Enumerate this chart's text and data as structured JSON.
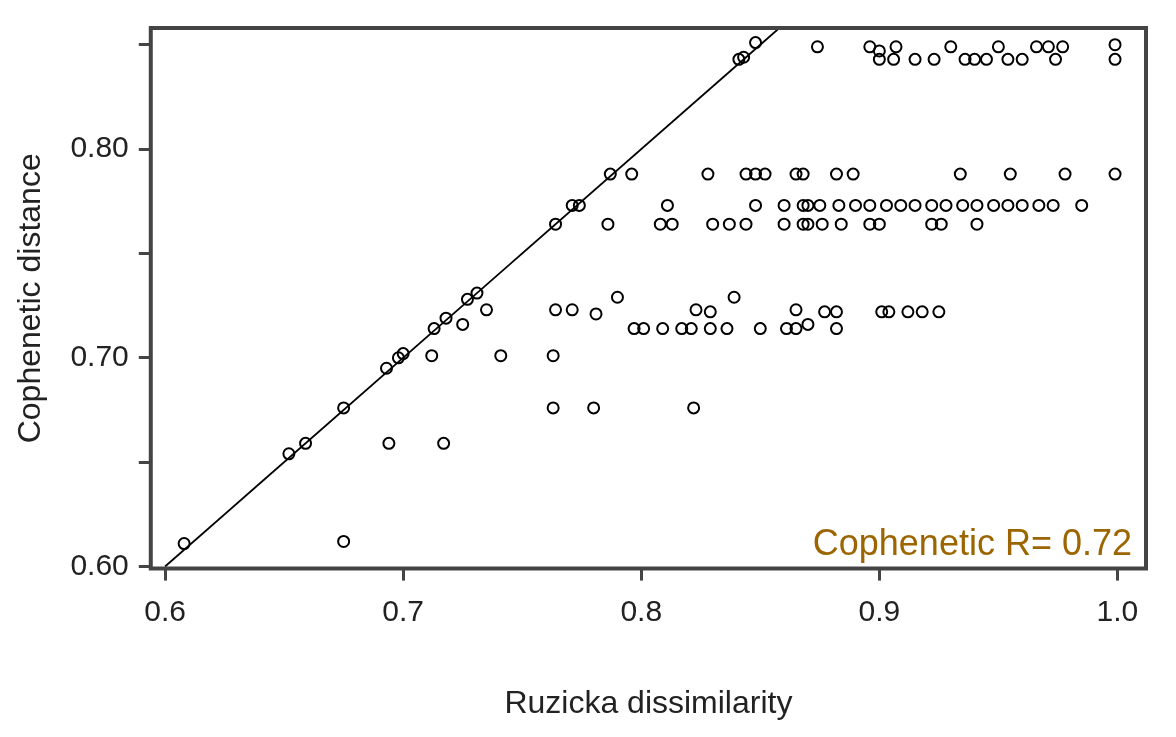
{
  "chart_data": {
    "type": "scatter",
    "xlabel": "Ruzicka dissimilarity",
    "ylabel": "Cophenetic distance",
    "annotations": [
      "Cophenetic R= 0.72"
    ],
    "xlim": [
      0.594,
      1.012
    ],
    "ylim": [
      0.599,
      0.858
    ],
    "xticks": [
      0.6,
      0.7,
      0.8,
      0.9,
      {
        "value": 1,
        "label": "1.0"
      }
    ],
    "yticks": [
      {
        "value": 0.6,
        "label": "0.60"
      },
      {
        "value": 0.65,
        "label": null
      },
      {
        "value": 0.7,
        "label": "0.70"
      },
      {
        "value": 0.75,
        "label": null
      },
      {
        "value": 0.8,
        "label": "0.80"
      },
      {
        "value": 0.85,
        "label": null
      }
    ],
    "series": [
      {
        "color": "#000000",
        "marker": "circle",
        "x": [
          0.608,
          0.652,
          0.659,
          0.675,
          0.693,
          0.698,
          0.7,
          0.713,
          0.718,
          0.725,
          0.727,
          0.731,
          0.694,
          0.717,
          0.675,
          0.712,
          0.735,
          0.764,
          0.771,
          0.781,
          0.79,
          0.801,
          0.797,
          0.809,
          0.817,
          0.821,
          0.823,
          0.829,
          0.829,
          0.836,
          0.839,
          0.85,
          0.861,
          0.865,
          0.865,
          0.741,
          0.763,
          0.763,
          0.78,
          0.822,
          0.87,
          0.877,
          0.882,
          0.882,
          0.901,
          0.904,
          0.912,
          0.918,
          0.925,
          0.848,
          0.843,
          0.841,
          0.787,
          0.796,
          0.828,
          0.844,
          0.848,
          0.852,
          0.865,
          0.868,
          0.882,
          0.889,
          0.934,
          0.955,
          0.978,
          0.999,
          0.774,
          0.771,
          0.764,
          0.786,
          0.811,
          0.808,
          0.813,
          0.83,
          0.837,
          0.844,
          0.848,
          0.86,
          0.868,
          0.86,
          0.868,
          0.87,
          0.875,
          0.883,
          0.89,
          0.896,
          0.903,
          0.909,
          0.915,
          0.922,
          0.928,
          0.935,
          0.941,
          0.948,
          0.954,
          0.96,
          0.967,
          0.973,
          0.985,
          0.87,
          0.876,
          0.884,
          0.896,
          0.9,
          0.922,
          0.926,
          0.941,
          0.874,
          0.896,
          0.907,
          0.93,
          0.95,
          0.966,
          0.971,
          0.977,
          0.999,
          0.906,
          0.915,
          0.923,
          0.936,
          0.945,
          0.96,
          0.974,
          0.999,
          0.9,
          0.9,
          0.94,
          0.954
        ],
        "values": [
          0.611,
          0.654,
          0.659,
          0.676,
          0.695,
          0.7,
          0.702,
          0.714,
          0.719,
          0.716,
          0.728,
          0.731,
          0.659,
          0.659,
          0.612,
          0.701,
          0.723,
          0.723,
          0.723,
          0.721,
          0.729,
          0.714,
          0.714,
          0.714,
          0.714,
          0.714,
          0.723,
          0.722,
          0.714,
          0.714,
          0.729,
          0.714,
          0.714,
          0.723,
          0.714,
          0.701,
          0.701,
          0.676,
          0.676,
          0.676,
          0.716,
          0.722,
          0.722,
          0.714,
          0.722,
          0.722,
          0.722,
          0.722,
          0.722,
          0.851,
          0.844,
          0.843,
          0.788,
          0.788,
          0.788,
          0.788,
          0.788,
          0.788,
          0.788,
          0.788,
          0.788,
          0.788,
          0.788,
          0.788,
          0.788,
          0.788,
          0.773,
          0.773,
          0.764,
          0.764,
          0.773,
          0.764,
          0.764,
          0.764,
          0.764,
          0.764,
          0.773,
          0.773,
          0.773,
          0.764,
          0.764,
          0.773,
          0.773,
          0.773,
          0.773,
          0.773,
          0.773,
          0.773,
          0.773,
          0.773,
          0.773,
          0.773,
          0.773,
          0.773,
          0.773,
          0.773,
          0.773,
          0.773,
          0.773,
          0.764,
          0.764,
          0.764,
          0.764,
          0.764,
          0.764,
          0.764,
          0.764,
          0.849,
          0.849,
          0.849,
          0.849,
          0.849,
          0.849,
          0.849,
          0.849,
          0.85,
          0.843,
          0.843,
          0.843,
          0.843,
          0.843,
          0.843,
          0.843,
          0.843,
          0.847,
          0.843,
          0.843,
          0.843
        ]
      },
      {
        "type": "line",
        "color": "#000000",
        "x": [
          0.6,
          0.858
        ],
        "values": [
          0.6,
          0.858
        ]
      }
    ]
  }
}
